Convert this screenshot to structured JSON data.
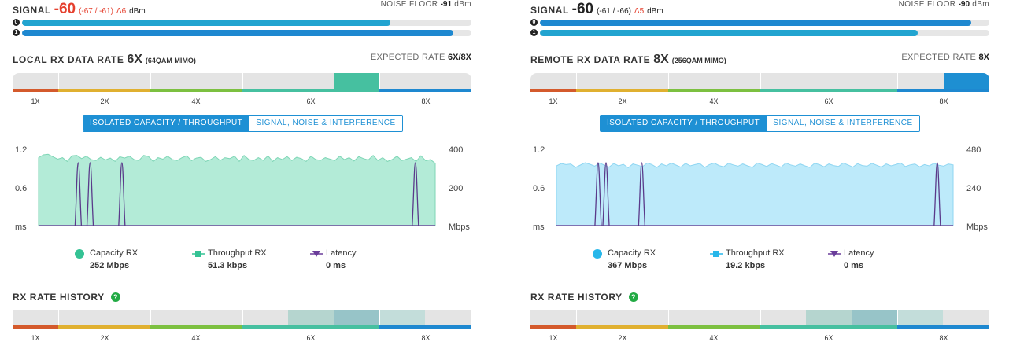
{
  "panels": [
    {
      "signal": {
        "label": "SIGNAL",
        "value": "-60",
        "chains": "(-67 / -61)",
        "delta": "Δ6",
        "unit": "dBm",
        "noise_label": "NOISE FLOOR",
        "noise_value": "-91",
        "noise_unit": "dBm",
        "value_color": "#e5402e",
        "bars": [
          {
            "chain": "0",
            "fraction": 0.82,
            "color": "#22a4d0"
          },
          {
            "chain": "1",
            "fraction": 0.96,
            "color": "#1e88d0"
          }
        ]
      },
      "rate": {
        "label": "LOCAL RX DATA RATE",
        "value": "6X",
        "modulation": "(64QAM MIMO)",
        "expected_label": "EXPECTED RATE",
        "expected_value": "6X/8X",
        "highlight_segment": 6,
        "highlight_color": "#46c0a0",
        "ticks": [
          "1X",
          "2X",
          "4X",
          "6X",
          "8X"
        ]
      },
      "tabs": [
        "ISOLATED CAPACITY / THROUGHPUT",
        "SIGNAL, NOISE & INTERFERENCE"
      ],
      "chart_data": {
        "type": "area",
        "left_axis": {
          "ticks": [
            "1.2",
            "0.6"
          ],
          "unit": "ms",
          "max": 1.2
        },
        "right_axis": {
          "ticks": [
            "400",
            "200"
          ],
          "unit": "Mbps",
          "max": 400
        },
        "series": [
          {
            "name": "Capacity RX",
            "color": "#b3ebd7",
            "stroke": "#7fd6b6",
            "values": [
              360,
              375,
              378,
              365,
              352,
              360,
              340,
              370,
              372,
              355,
              368,
              350,
              345,
              362,
              348,
              358,
              340,
              365,
              358,
              368,
              350,
              345,
              372,
              366,
              340,
              360,
              352,
              368,
              350,
              345,
              360,
              370,
              344,
              358,
              362,
              340,
              350,
              366,
              345,
              360,
              355,
              368,
              340,
              372,
              350,
              345,
              360,
              346,
              370,
              340,
              360,
              350,
              366,
              345,
              362,
              355,
              340,
              368,
              350,
              346,
              360,
              352,
              345,
              368,
              350,
              360,
              342,
              366,
              355,
              348,
              372,
              345,
              360,
              340,
              350,
              368,
              345,
              352,
              360,
              340,
              370,
              344,
              350,
              330
            ]
          },
          {
            "name": "Throughput RX",
            "color": "#2cc09c",
            "values": []
          },
          {
            "name": "Latency",
            "color": "#5a3a8a",
            "spikes_x_fraction": [
              0.1,
              0.13,
              0.21,
              0.95
            ],
            "spike_value": 1.0
          }
        ]
      },
      "legend": [
        {
          "label": "Capacity RX",
          "value": "252 Mbps",
          "color": "#34c294",
          "shape": "circle"
        },
        {
          "label": "Throughput RX",
          "value": "51.3 kbps",
          "color": "#34c294",
          "shape": "square"
        },
        {
          "label": "Latency",
          "value": "0 ms",
          "color": "#6a3d9a",
          "shape": "triangle"
        }
      ],
      "history": {
        "label": "RX RATE HISTORY",
        "help": "?",
        "blocks": [
          {
            "segment": 6,
            "color": "#b5d5cf"
          },
          {
            "segment": 7,
            "color": "#97c4c8"
          },
          {
            "segment": 8,
            "color": "#c3ddda"
          }
        ]
      }
    },
    {
      "signal": {
        "label": "SIGNAL",
        "value": "-60",
        "chains": "(-61 / -66)",
        "delta": "Δ5",
        "unit": "dBm",
        "noise_label": "NOISE FLOOR",
        "noise_value": "-90",
        "noise_unit": "dBm",
        "value_color": "#222222",
        "bars": [
          {
            "chain": "0",
            "fraction": 0.96,
            "color": "#1e88d0"
          },
          {
            "chain": "1",
            "fraction": 0.84,
            "color": "#22a4d0"
          }
        ]
      },
      "rate": {
        "label": "REMOTE RX DATA RATE",
        "value": "8X",
        "modulation": "(256QAM MIMO)",
        "expected_label": "EXPECTED RATE",
        "expected_value": "8X",
        "highlight_segment": 8,
        "highlight_color": "#1e8fd2",
        "ticks": [
          "1X",
          "2X",
          "4X",
          "6X",
          "8X"
        ]
      },
      "tabs": [
        "ISOLATED CAPACITY / THROUGHPUT",
        "SIGNAL, NOISE & INTERFERENCE"
      ],
      "chart_data": {
        "type": "area",
        "left_axis": {
          "ticks": [
            "1.2",
            "0.6"
          ],
          "unit": "ms",
          "max": 1.2
        },
        "right_axis": {
          "ticks": [
            "480",
            "240"
          ],
          "unit": "Mbps",
          "max": 480
        },
        "series": [
          {
            "name": "Capacity RX",
            "color": "#bdeafa",
            "stroke": "#8fd6f2",
            "values": [
              380,
              395,
              388,
              392,
              370,
              385,
              400,
              390,
              378,
              398,
              385,
              372,
              395,
              380,
              390,
              368,
              392,
              384,
              375,
              398,
              388,
              370,
              392,
              380,
              398,
              385,
              372,
              396,
              380,
              388,
              395,
              370,
              388,
              398,
              382,
              374,
              396,
              386,
              378,
              392,
              380,
              370,
              398,
              388,
              376,
              394,
              384,
              372,
              398,
              386,
              378,
              392,
              380,
              370,
              396,
              388,
              374,
              392,
              382,
              376,
              398,
              386,
              372,
              394,
              382,
              378,
              396,
              384,
              372,
              392,
              380,
              388,
              398,
              376,
              386,
              392,
              374,
              388,
              380,
              396,
              384,
              378,
              392,
              386
            ]
          },
          {
            "name": "Throughput RX",
            "color": "#2ab5e6",
            "values": []
          },
          {
            "name": "Latency",
            "color": "#5a3a8a",
            "spikes_x_fraction": [
              0.105,
              0.125,
              0.215,
              0.96
            ],
            "spike_value": 1.0
          }
        ]
      },
      "legend": [
        {
          "label": "Capacity RX",
          "value": "367 Mbps",
          "color": "#27b7ea",
          "shape": "circle"
        },
        {
          "label": "Throughput RX",
          "value": "19.2 kbps",
          "color": "#27b7ea",
          "shape": "square"
        },
        {
          "label": "Latency",
          "value": "0 ms",
          "color": "#6a3d9a",
          "shape": "triangle"
        }
      ],
      "history": {
        "label": "RX RATE HISTORY",
        "help": "?",
        "blocks": [
          {
            "segment": 6,
            "color": "#b5d5cf"
          },
          {
            "segment": 7,
            "color": "#97c4c8"
          },
          {
            "segment": 8,
            "color": "#c3ddda"
          }
        ]
      }
    }
  ],
  "rate_strip_colors": [
    "#d45a2c",
    "#e0b030",
    "#7cc040",
    "#46c0a0",
    "#1e88d0"
  ]
}
